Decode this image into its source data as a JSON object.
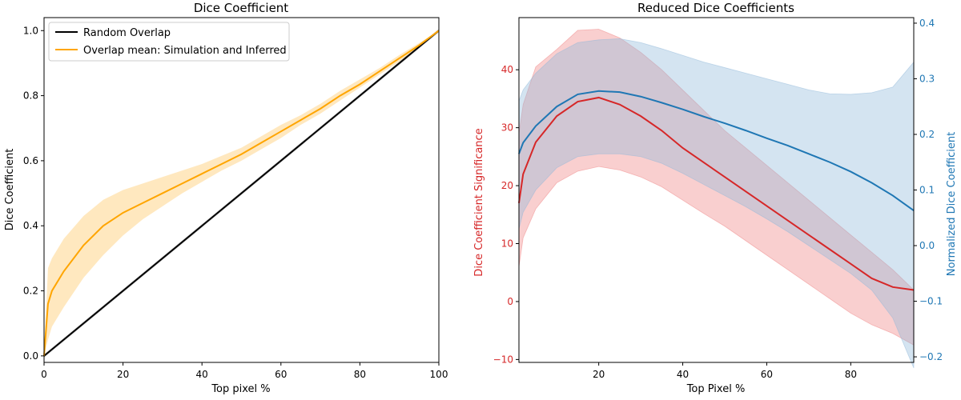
{
  "chart_data": [
    {
      "type": "line",
      "title": "Dice Coefficient",
      "xlabel": "Top pixel %",
      "ylabel": "Dice Coefficient",
      "xlim": [
        0,
        100
      ],
      "ylim": [
        -0.02,
        1.04
      ],
      "xticks": [
        0,
        20,
        40,
        60,
        80,
        100
      ],
      "yticks": [
        0.0,
        0.2,
        0.4,
        0.6,
        0.8,
        1.0
      ],
      "xtick_labels": [
        "0",
        "20",
        "40",
        "60",
        "80",
        "100"
      ],
      "ytick_labels": [
        "0.0",
        "0.2",
        "0.4",
        "0.6",
        "0.8",
        "1.0"
      ],
      "legend_position": "top-left",
      "series": [
        {
          "name": "Random Overlap",
          "color": "#000000",
          "x": [
            0,
            100
          ],
          "y": [
            0.0,
            1.0
          ],
          "lower": [
            -0.005,
            0.995
          ],
          "upper": [
            0.005,
            1.005
          ],
          "band_color": "#999999"
        },
        {
          "name": "Overlap mean: Simulation and Inferred",
          "color": "#ffa500",
          "x": [
            0,
            1,
            2,
            5,
            10,
            15,
            20,
            25,
            30,
            35,
            40,
            45,
            50,
            55,
            60,
            65,
            70,
            75,
            80,
            85,
            90,
            95,
            100
          ],
          "y": [
            0.0,
            0.16,
            0.2,
            0.26,
            0.34,
            0.4,
            0.44,
            0.47,
            0.5,
            0.53,
            0.56,
            0.59,
            0.62,
            0.655,
            0.69,
            0.725,
            0.76,
            0.8,
            0.835,
            0.875,
            0.915,
            0.955,
            1.0
          ],
          "lower": [
            0.0,
            0.05,
            0.09,
            0.15,
            0.24,
            0.31,
            0.37,
            0.42,
            0.46,
            0.5,
            0.535,
            0.57,
            0.6,
            0.635,
            0.67,
            0.71,
            0.745,
            0.785,
            0.825,
            0.865,
            0.905,
            0.95,
            1.0
          ],
          "upper": [
            0.0,
            0.27,
            0.3,
            0.36,
            0.43,
            0.48,
            0.51,
            0.53,
            0.55,
            0.57,
            0.59,
            0.615,
            0.64,
            0.675,
            0.71,
            0.74,
            0.775,
            0.815,
            0.85,
            0.885,
            0.925,
            0.962,
            1.0
          ],
          "band_color": "#ffa500"
        }
      ]
    },
    {
      "type": "line",
      "title": "Reduced Dice Coefficients",
      "xlabel": "Top Pixel %",
      "ylabel": "Dice Coefficient Significance",
      "ylabel_right": "Normalized Dice Coefficient",
      "xlim": [
        1,
        95
      ],
      "ylim": [
        -10.5,
        49
      ],
      "ylim_right": [
        -0.21,
        0.41
      ],
      "xticks": [
        20,
        40,
        60,
        80
      ],
      "xtick_labels": [
        "20",
        "40",
        "60",
        "80"
      ],
      "yticks": [
        -10,
        0,
        10,
        20,
        30,
        40
      ],
      "ytick_labels": [
        "−10",
        "0",
        "10",
        "20",
        "30",
        "40"
      ],
      "yticks_right": [
        -0.2,
        -0.1,
        0.0,
        0.1,
        0.2,
        0.3,
        0.4
      ],
      "ytick_labels_right": [
        "−0.2",
        "−0.1",
        "0.0",
        "0.1",
        "0.2",
        "0.3",
        "0.4"
      ],
      "left_axis_color": "#d62728",
      "right_axis_color": "#1f77b4",
      "series": [
        {
          "axis": "left",
          "color": "#d62728",
          "x": [
            1,
            2,
            5,
            10,
            15,
            20,
            25,
            30,
            35,
            40,
            45,
            50,
            55,
            60,
            65,
            70,
            75,
            80,
            85,
            90,
            95
          ],
          "y": [
            17,
            22,
            27.5,
            32,
            34.5,
            35.2,
            34,
            32,
            29.5,
            26.5,
            24,
            21.5,
            19,
            16.5,
            14,
            11.5,
            9,
            6.5,
            4,
            2.5,
            2
          ],
          "lower": [
            6,
            11,
            16,
            20.5,
            22.5,
            23.3,
            22.7,
            21.5,
            19.8,
            17.5,
            15.2,
            13,
            10.5,
            8,
            5.5,
            3,
            0.5,
            -2,
            -4,
            -5.5,
            -7.5
          ],
          "upper": [
            29,
            34,
            40.5,
            43.5,
            46.8,
            47,
            45.5,
            43,
            40,
            36.5,
            33,
            29.5,
            26.5,
            23.5,
            20.5,
            17.5,
            14.5,
            11.5,
            8.5,
            5.5,
            2
          ],
          "band_color": "#f08080"
        },
        {
          "axis": "right",
          "color": "#1f77b4",
          "x": [
            1,
            2,
            5,
            10,
            15,
            20,
            25,
            30,
            35,
            40,
            45,
            50,
            55,
            60,
            65,
            70,
            75,
            80,
            85,
            90,
            95
          ],
          "y": [
            0.165,
            0.185,
            0.215,
            0.25,
            0.272,
            0.278,
            0.276,
            0.268,
            0.257,
            0.245,
            0.232,
            0.22,
            0.207,
            0.193,
            0.18,
            0.165,
            0.15,
            0.133,
            0.113,
            0.09,
            0.063
          ],
          "lower": [
            0.03,
            0.06,
            0.1,
            0.14,
            0.16,
            0.165,
            0.165,
            0.16,
            0.148,
            0.13,
            0.11,
            0.09,
            0.07,
            0.048,
            0.025,
            0.0,
            -0.025,
            -0.05,
            -0.08,
            -0.13,
            -0.22
          ],
          "upper": [
            0.26,
            0.28,
            0.31,
            0.345,
            0.365,
            0.37,
            0.372,
            0.365,
            0.354,
            0.342,
            0.33,
            0.32,
            0.31,
            0.3,
            0.29,
            0.28,
            0.273,
            0.272,
            0.275,
            0.285,
            0.33
          ],
          "band_color": "#8fb8d9"
        }
      ]
    }
  ]
}
